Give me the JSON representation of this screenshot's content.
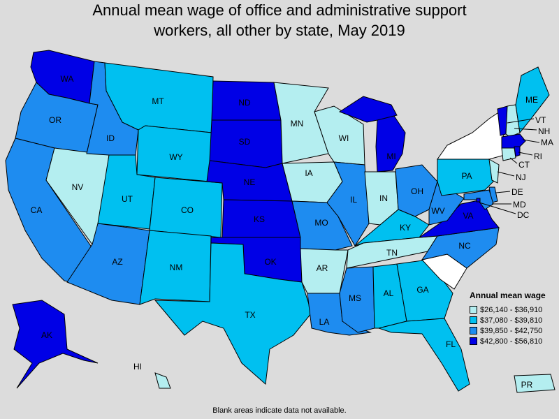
{
  "title_line1": "Annual mean wage of office and administrative support",
  "title_line2": "workers, all other by state, May 2019",
  "legend": {
    "title": "Annual mean wage",
    "bins": [
      {
        "label": "$26,140 - $36,910",
        "color": "#b4eef0"
      },
      {
        "label": "$37,080 - $39,810",
        "color": "#00c0f0"
      },
      {
        "label": "$39,850 - $42,750",
        "color": "#1e8cf0"
      },
      {
        "label": "$42,800 - $56,810",
        "color": "#0000e6"
      }
    ]
  },
  "no_data_color": "#ffffff",
  "footnote": "Blank areas indicate data not available.",
  "states": [
    {
      "abbr": "WA",
      "bin": 3
    },
    {
      "abbr": "OR",
      "bin": 2
    },
    {
      "abbr": "CA",
      "bin": 2
    },
    {
      "abbr": "NV",
      "bin": 0
    },
    {
      "abbr": "ID",
      "bin": 2
    },
    {
      "abbr": "MT",
      "bin": 1
    },
    {
      "abbr": "WY",
      "bin": 1
    },
    {
      "abbr": "UT",
      "bin": 1
    },
    {
      "abbr": "CO",
      "bin": 1
    },
    {
      "abbr": "AZ",
      "bin": 2
    },
    {
      "abbr": "NM",
      "bin": 1
    },
    {
      "abbr": "ND",
      "bin": 3
    },
    {
      "abbr": "SD",
      "bin": 3
    },
    {
      "abbr": "NE",
      "bin": 3
    },
    {
      "abbr": "KS",
      "bin": 3
    },
    {
      "abbr": "OK",
      "bin": 3
    },
    {
      "abbr": "TX",
      "bin": 1
    },
    {
      "abbr": "MN",
      "bin": 0
    },
    {
      "abbr": "IA",
      "bin": 0
    },
    {
      "abbr": "MO",
      "bin": 2
    },
    {
      "abbr": "AR",
      "bin": 0
    },
    {
      "abbr": "LA",
      "bin": 2
    },
    {
      "abbr": "WI",
      "bin": 0
    },
    {
      "abbr": "IL",
      "bin": 2
    },
    {
      "abbr": "MI",
      "bin": 3
    },
    {
      "abbr": "IN",
      "bin": 0
    },
    {
      "abbr": "OH",
      "bin": 2
    },
    {
      "abbr": "KY",
      "bin": 1
    },
    {
      "abbr": "TN",
      "bin": 0
    },
    {
      "abbr": "MS",
      "bin": 2
    },
    {
      "abbr": "AL",
      "bin": 1
    },
    {
      "abbr": "GA",
      "bin": 1
    },
    {
      "abbr": "FL",
      "bin": 1
    },
    {
      "abbr": "SC",
      "bin": null
    },
    {
      "abbr": "NC",
      "bin": 2
    },
    {
      "abbr": "VA",
      "bin": 3
    },
    {
      "abbr": "WV",
      "bin": 2
    },
    {
      "abbr": "PA",
      "bin": 1
    },
    {
      "abbr": "NY",
      "bin": null
    },
    {
      "abbr": "NJ",
      "bin": 0
    },
    {
      "abbr": "DE",
      "bin": 2
    },
    {
      "abbr": "MD",
      "bin": 2
    },
    {
      "abbr": "DC",
      "bin": 3
    },
    {
      "abbr": "VT",
      "bin": 3
    },
    {
      "abbr": "NH",
      "bin": 0
    },
    {
      "abbr": "ME",
      "bin": 1
    },
    {
      "abbr": "MA",
      "bin": 3
    },
    {
      "abbr": "CT",
      "bin": 0
    },
    {
      "abbr": "RI",
      "bin": 3
    },
    {
      "abbr": "AK",
      "bin": 3
    },
    {
      "abbr": "HI",
      "bin": 0
    },
    {
      "abbr": "PR",
      "bin": 0
    }
  ]
}
